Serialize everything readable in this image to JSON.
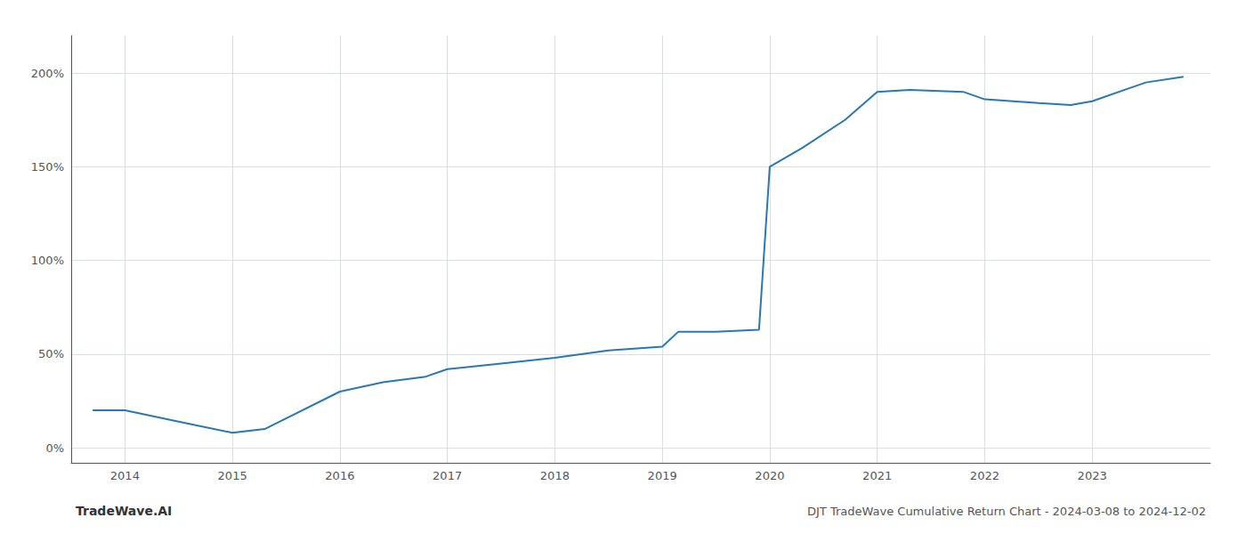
{
  "chart_data": {
    "type": "line",
    "title": "DJT TradeWave Cumulative Return Chart - 2024-03-08 to 2024-12-02",
    "annotations": [
      "TradeWave.AI"
    ],
    "x": [
      2013.7,
      2014.0,
      2014.5,
      2015.0,
      2015.3,
      2016.0,
      2016.4,
      2016.8,
      2017.0,
      2017.5,
      2018.0,
      2018.5,
      2019.0,
      2019.15,
      2019.5,
      2019.9,
      2020.0,
      2020.3,
      2020.7,
      2021.0,
      2021.3,
      2021.8,
      2022.0,
      2022.5,
      2022.8,
      2023.0,
      2023.5,
      2023.85
    ],
    "values": [
      20,
      20,
      14,
      8,
      10,
      30,
      35,
      38,
      42,
      45,
      48,
      52,
      54,
      62,
      62,
      63,
      150,
      160,
      175,
      190,
      191,
      190,
      186,
      184,
      183,
      185,
      195,
      198
    ],
    "color": "#2878b5",
    "xlim": [
      2013.5,
      2024.1
    ],
    "xticks": [
      2014,
      2015,
      2016,
      2017,
      2018,
      2019,
      2020,
      2021,
      2022,
      2023
    ],
    "ylim": [
      -8,
      220
    ],
    "yticks": [
      {
        "value": 0,
        "label": "0%"
      },
      {
        "value": 50,
        "label": "50%"
      },
      {
        "value": 100,
        "label": "100%"
      },
      {
        "value": 150,
        "label": "150%"
      },
      {
        "value": 200,
        "label": "200%"
      }
    ],
    "grid": true
  }
}
